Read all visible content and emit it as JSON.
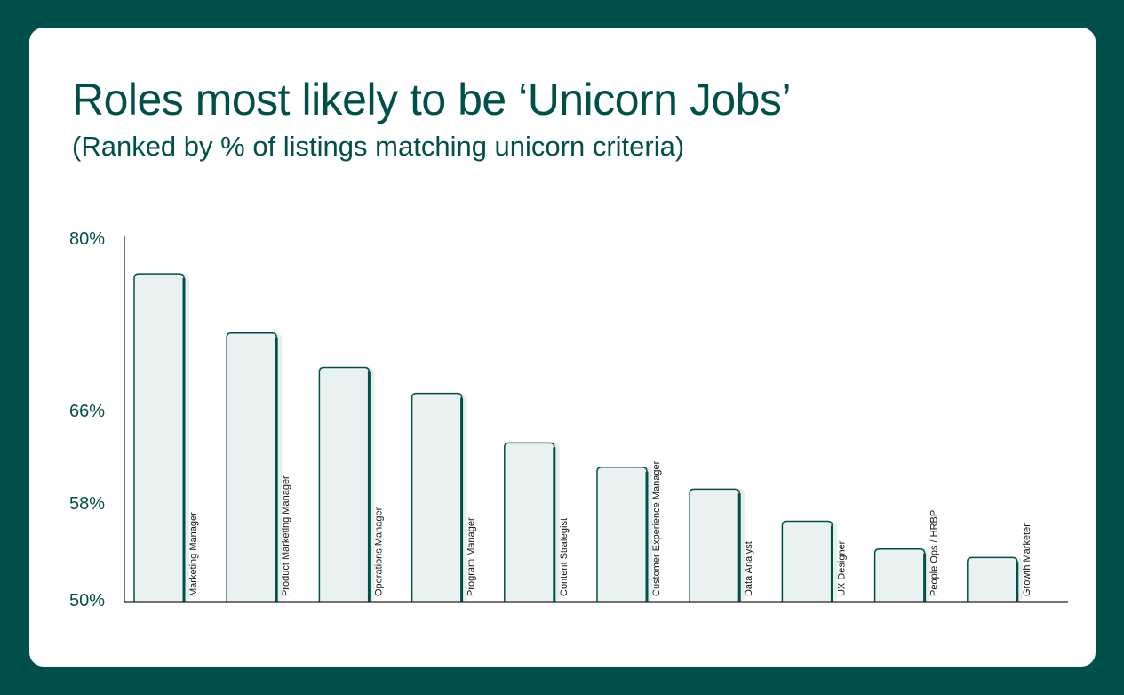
{
  "title": "Roles most likely to be ‘Unicorn Jobs’",
  "subtitle": "(Ranked by % of listings matching unicorn criteria)",
  "colors": {
    "frame": "#00504a",
    "bar_fill": "#e9f2f1",
    "bar_shadow": "#e7efee",
    "bar_outline": "#00504a",
    "axis": "#222222"
  },
  "chart_data": {
    "type": "bar",
    "title": "Roles most likely to be ‘Unicorn Jobs’",
    "subtitle": "(Ranked by % of listings matching unicorn criteria)",
    "categories": [
      "Marketing Manager",
      "Product Marketing Manager",
      "Operations Manager",
      "Program Manager",
      "Content Strategist",
      "Customer Experience Manager",
      "Data Analyst",
      "UX Designer",
      "People Ops / HRBP",
      "Growth Marketer"
    ],
    "values": [
      77.1,
      72.3,
      69.5,
      67.4,
      63.2,
      61.1,
      59.2,
      56.5,
      54.2,
      53.5
    ],
    "yticks": [
      {
        "value": 50,
        "label": "50%"
      },
      {
        "value": 58,
        "label": "58%"
      },
      {
        "value": 66,
        "label": "66%"
      },
      {
        "value": 80,
        "label": "80%"
      }
    ],
    "ylim": [
      50,
      80
    ],
    "xlabel": "",
    "ylabel": "",
    "grid": false,
    "legend": "none"
  }
}
